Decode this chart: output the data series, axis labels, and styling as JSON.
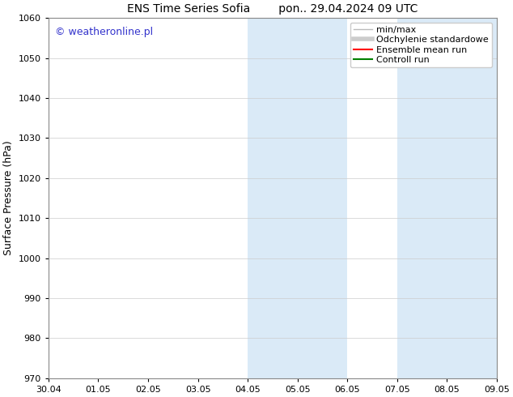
{
  "title_left": "ENS Time Series Sofia",
  "title_right": "pon.. 29.04.2024 09 UTC",
  "ylabel": "Surface Pressure (hPa)",
  "ylim": [
    970,
    1060
  ],
  "yticks": [
    970,
    980,
    990,
    1000,
    1010,
    1020,
    1030,
    1040,
    1050,
    1060
  ],
  "xtick_labels": [
    "30.04",
    "01.05",
    "02.05",
    "03.05",
    "04.05",
    "05.05",
    "06.05",
    "07.05",
    "08.05",
    "09.05"
  ],
  "xtick_positions": [
    0,
    1,
    2,
    3,
    4,
    5,
    6,
    7,
    8,
    9
  ],
  "xlim": [
    0,
    9
  ],
  "shaded_bands": [
    {
      "x_start": 4,
      "x_end": 5
    },
    {
      "x_start": 5,
      "x_end": 6
    },
    {
      "x_start": 7,
      "x_end": 8
    },
    {
      "x_start": 8,
      "x_end": 9
    }
  ],
  "shaded_color": "#daeaf7",
  "background_color": "#ffffff",
  "watermark_text": "© weatheronline.pl",
  "watermark_color": "#3333cc",
  "legend_items": [
    {
      "label": "min/max",
      "color": "#bbbbbb",
      "lw": 1.0
    },
    {
      "label": "Odchylenie standardowe",
      "color": "#cccccc",
      "lw": 4
    },
    {
      "label": "Ensemble mean run",
      "color": "#ff0000",
      "lw": 1.5
    },
    {
      "label": "Controll run",
      "color": "#008000",
      "lw": 1.5
    }
  ],
  "grid_color": "#cccccc",
  "title_fontsize": 10,
  "ylabel_fontsize": 9,
  "tick_fontsize": 8,
  "watermark_fontsize": 9,
  "legend_fontsize": 8
}
